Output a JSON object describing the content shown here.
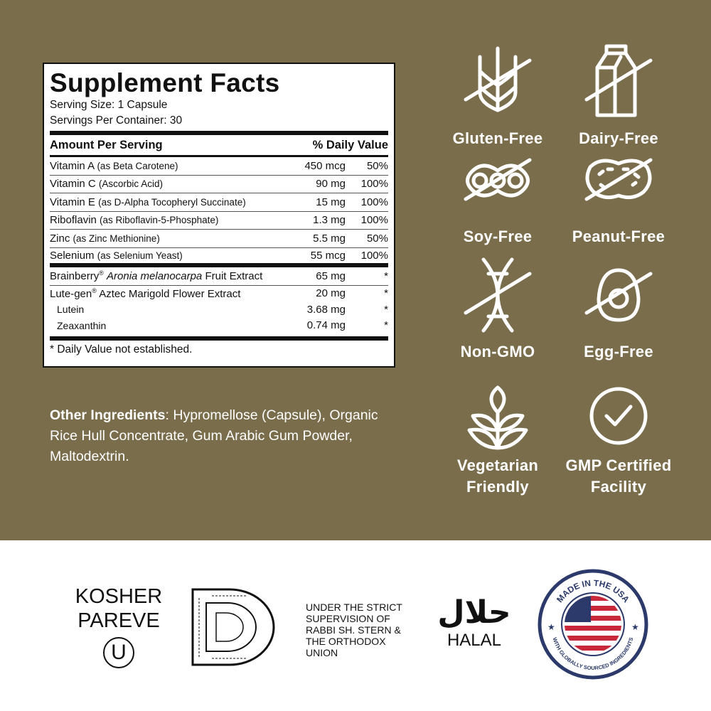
{
  "colors": {
    "background": "#7a6d4c",
    "icon": "#ffffff",
    "flag_blue": "#2b3a6b",
    "flag_red": "#c8283a"
  },
  "facts": {
    "title": "Supplement Facts",
    "serving_size": "Serving Size: 1 Capsule",
    "servings_per_container": "Servings Per Container: 30",
    "header_amount": "Amount Per Serving",
    "header_dv": "% Daily Value",
    "rows": [
      {
        "name": "Vitamin A",
        "detail": "(as Beta Carotene)",
        "amount": "450 mcg",
        "dv": "50%"
      },
      {
        "name": "Vitamin C",
        "detail": "(Ascorbic Acid)",
        "amount": "90 mg",
        "dv": "100%"
      },
      {
        "name": "Vitamin E",
        "detail": "(as D-Alpha Tocopheryl Succinate)",
        "amount": "15 mg",
        "dv": "100%"
      },
      {
        "name": "Riboflavin",
        "detail": "(as Riboflavin-5-Phosphate)",
        "amount": "1.3 mg",
        "dv": "100%"
      },
      {
        "name": "Zinc",
        "detail": "(as Zinc Methionine)",
        "amount": "5.5 mg",
        "dv": "50%"
      },
      {
        "name": "Selenium",
        "detail": "(as Selenium Yeast)",
        "amount": "55 mcg",
        "dv": "100%"
      }
    ],
    "blend": [
      {
        "brand": "Brainberry",
        "reg": "®",
        "italic": "Aronia melanocarpa",
        "rest": "Fruit Extract",
        "amount": "65 mg",
        "dv": "*"
      },
      {
        "brand": "Lute-gen",
        "reg": "®",
        "italic": "",
        "rest": "Aztec Marigold Flower Extract",
        "amount": "20 mg",
        "dv": "*"
      }
    ],
    "sub": [
      {
        "name": "Lutein",
        "amount": "3.68 mg",
        "dv": "*"
      },
      {
        "name": "Zeaxanthin",
        "amount": "0.74 mg",
        "dv": "*"
      }
    ],
    "footnote": "* Daily Value not established."
  },
  "other": {
    "label": "Other Ingredients",
    "text": ": Hypromellose (Capsule), Organic Rice Hull Concentrate, Gum Arabic Gum Powder, Maltodextrin."
  },
  "badges": [
    {
      "icon": "wheat-crossed-icon",
      "line1": "Gluten-Free",
      "line2": ""
    },
    {
      "icon": "milk-carton-crossed-icon",
      "line1": "Dairy-Free",
      "line2": ""
    },
    {
      "icon": "soybean-crossed-icon",
      "line1": "Soy-Free",
      "line2": ""
    },
    {
      "icon": "peanut-crossed-icon",
      "line1": "Peanut-Free",
      "line2": ""
    },
    {
      "icon": "dna-crossed-icon",
      "line1": "Non-GMO",
      "line2": ""
    },
    {
      "icon": "egg-crossed-icon",
      "line1": "Egg-Free",
      "line2": ""
    },
    {
      "icon": "leaf-icon",
      "line1": "Vegetarian",
      "line2": "Friendly"
    },
    {
      "icon": "check-circle-icon",
      "line1": "GMP Certified",
      "line2": "Facility"
    }
  ],
  "certs": {
    "kosher_line1": "KOSHER",
    "kosher_line2": "PAREVE",
    "ou_letter": "U",
    "supervision": [
      "UNDER THE STRICT",
      "SUPERVISION OF",
      "RABBI SH. STERN &",
      "THE ORTHODOX",
      "UNION"
    ],
    "halal_arabic": "حلال",
    "halal": "HALAL",
    "usa_top": "MADE IN THE USA",
    "usa_bottom": "WITH GLOBALLY SOURCED INGREDIENTS"
  }
}
